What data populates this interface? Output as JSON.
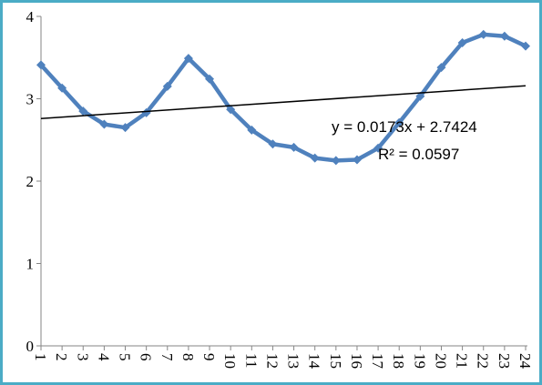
{
  "chart_data": {
    "type": "line",
    "categories": [
      "1",
      "2",
      "3",
      "4",
      "5",
      "6",
      "7",
      "8",
      "9",
      "10",
      "11",
      "12",
      "13",
      "14",
      "15",
      "16",
      "17",
      "18",
      "19",
      "20",
      "21",
      "22",
      "23",
      "24"
    ],
    "series": [
      {
        "color": "#4f81bd",
        "values": [
          3.41,
          3.13,
          2.85,
          2.69,
          2.65,
          2.83,
          3.15,
          3.49,
          3.24,
          2.87,
          2.62,
          2.45,
          2.41,
          2.28,
          2.25,
          2.26,
          2.4,
          2.71,
          3.03,
          3.38,
          3.68,
          3.78,
          3.76,
          3.64
        ]
      }
    ],
    "trendline": {
      "slope": 0.0173,
      "intercept": 2.7424,
      "color": "#000000"
    },
    "annotations": [
      "y = 0.0173x + 2.7424",
      "R² = 0.0597"
    ],
    "ylim": [
      0,
      4
    ],
    "yticks": [
      0,
      1,
      2,
      3,
      4
    ],
    "grid": false
  }
}
